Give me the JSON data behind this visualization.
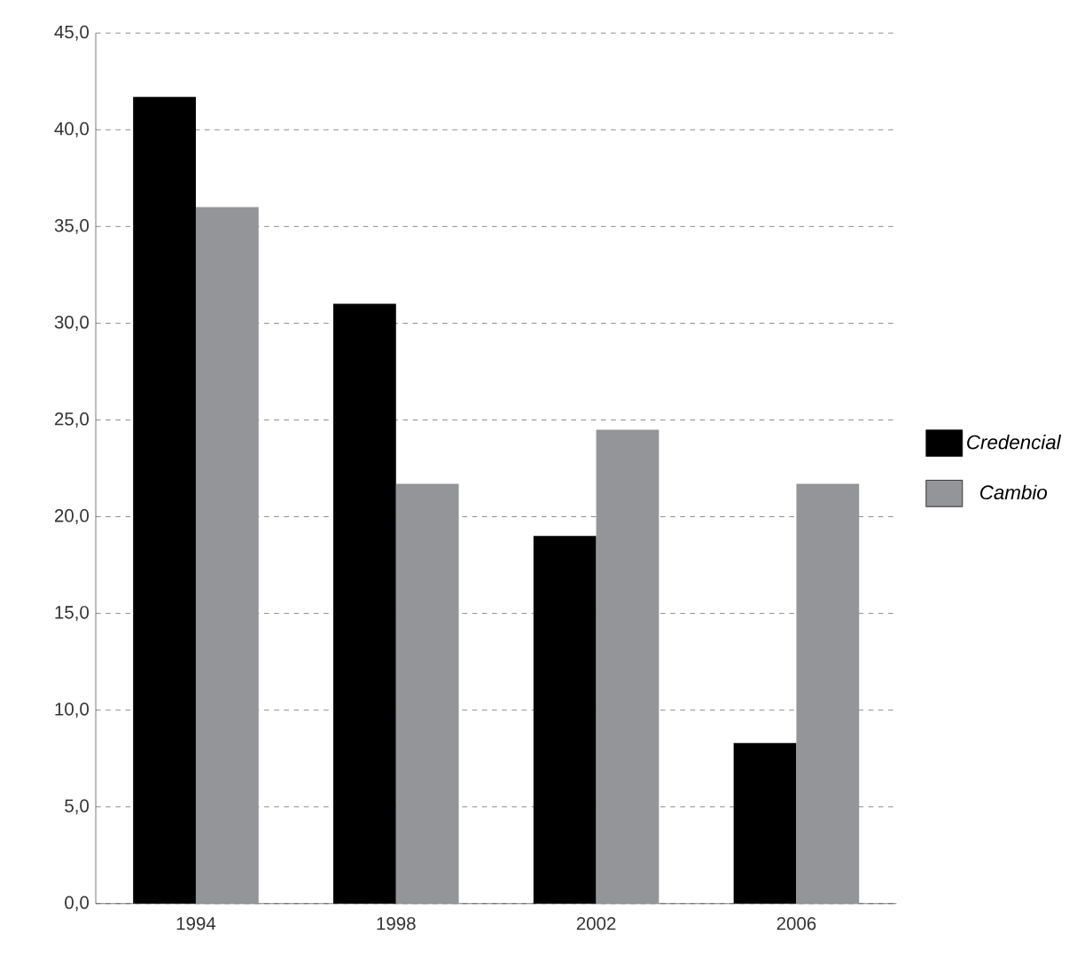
{
  "chart_data": {
    "type": "bar",
    "categories": [
      "1994",
      "1998",
      "2002",
      "2006"
    ],
    "series": [
      {
        "name": "Credencial",
        "color": "#000000",
        "values": [
          41.7,
          31.0,
          19.0,
          8.3
        ]
      },
      {
        "name": "Cambio",
        "color": "#939598",
        "values": [
          36.0,
          21.7,
          24.5,
          21.7
        ]
      }
    ],
    "ylim": [
      0,
      45
    ],
    "yticks": [
      {
        "value": 0,
        "label": "0,0"
      },
      {
        "value": 5,
        "label": "5,0"
      },
      {
        "value": 10,
        "label": "10,0"
      },
      {
        "value": 15,
        "label": "15,0"
      },
      {
        "value": 20,
        "label": "20,0"
      },
      {
        "value": 25,
        "label": "25,0"
      },
      {
        "value": 30,
        "label": "30,0"
      },
      {
        "value": 35,
        "label": "35,0"
      },
      {
        "value": 40,
        "label": "40,0"
      },
      {
        "value": 45,
        "label": "45,0"
      }
    ],
    "grid": "y",
    "legend": "right"
  }
}
